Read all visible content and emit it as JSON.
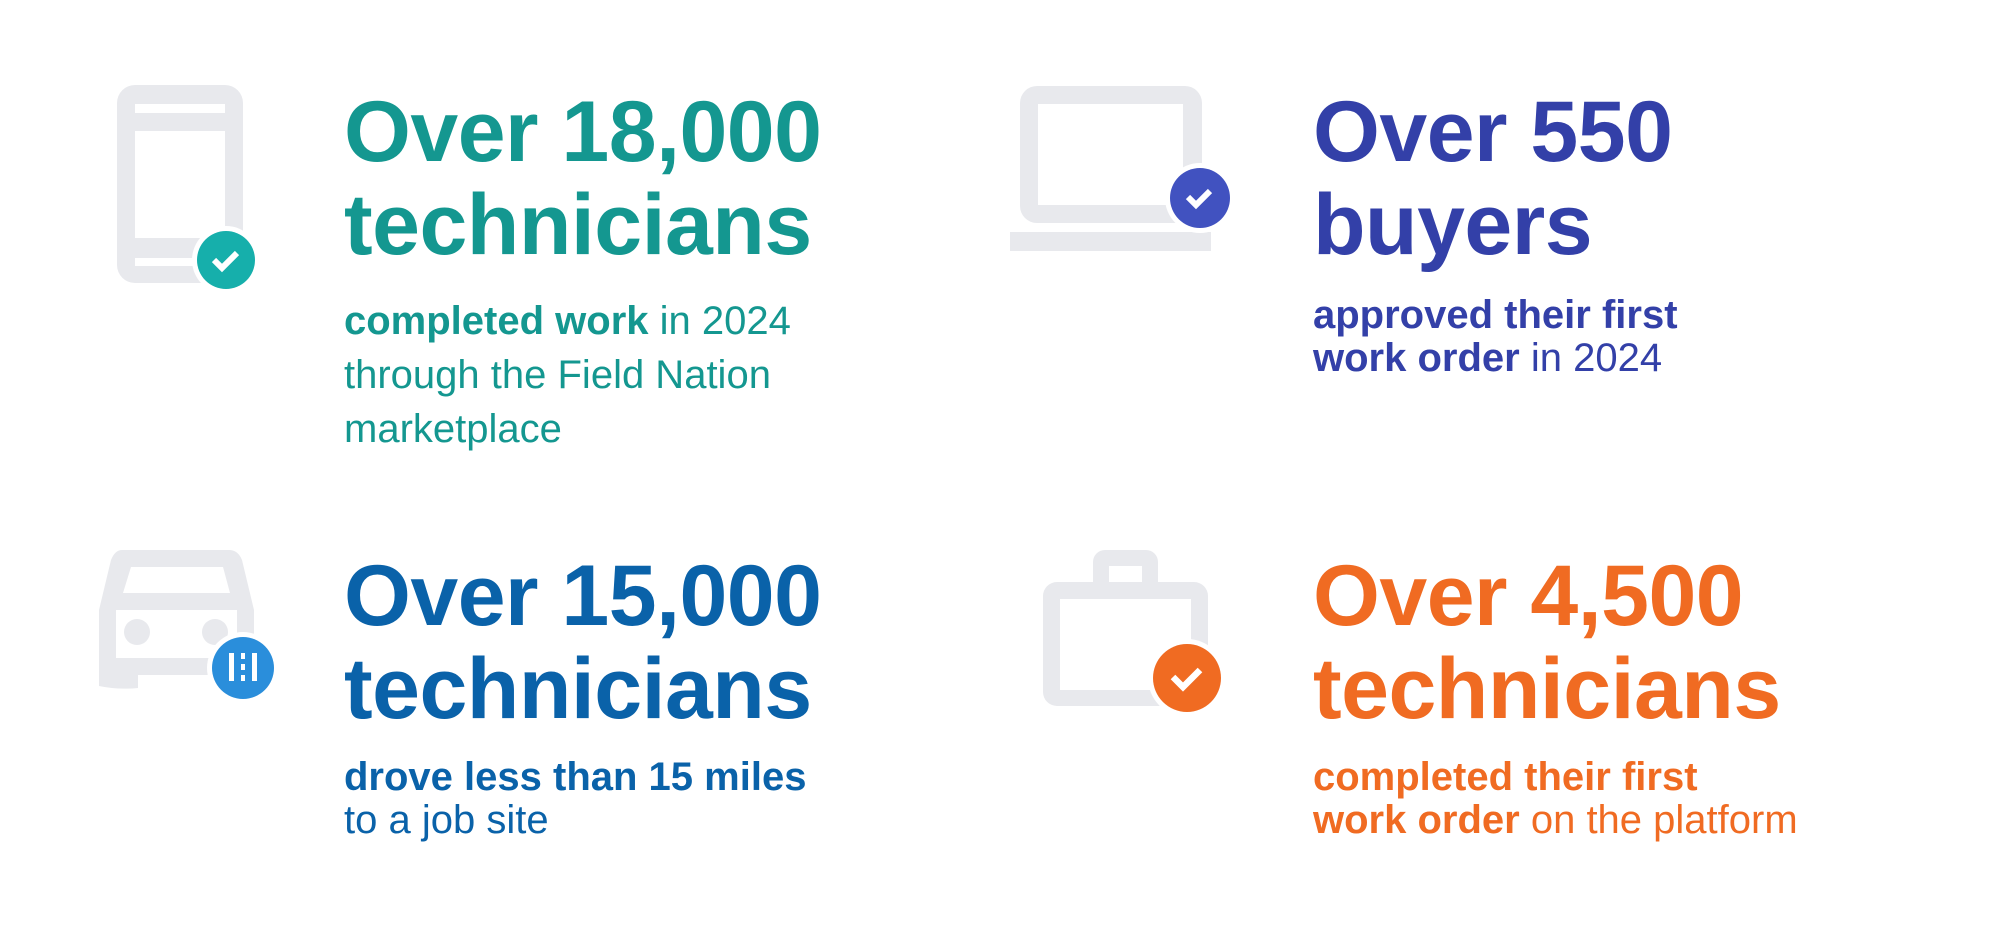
{
  "colors": {
    "icon_gray": "#E8E9ED",
    "teal": "#149790",
    "teal_badge": "#16AFAB",
    "indigo": "#3340A8",
    "indigo_badge": "#4152C0",
    "blue": "#0A62A9",
    "blue_badge": "#2A8EDB",
    "orange": "#F06B22",
    "orange_badge": "#F06B22"
  },
  "stats": [
    {
      "icon": "phone-with-check-icon",
      "headline": [
        "Over 18,000",
        "technicians"
      ],
      "sub_lines": [
        {
          "bold": "completed work",
          "normal": " in 2024"
        },
        {
          "bold": "",
          "normal": "through the Field Nation"
        },
        {
          "bold": "",
          "normal": "marketplace"
        }
      ]
    },
    {
      "icon": "laptop-with-check-icon",
      "headline": [
        "Over 550",
        "buyers"
      ],
      "sub_lines": [
        {
          "bold": "approved their first",
          "normal": ""
        },
        {
          "bold": "work order",
          "normal": " in 2024"
        }
      ]
    },
    {
      "icon": "car-with-road-icon",
      "headline": [
        "Over 15,000",
        "technicians"
      ],
      "sub_lines": [
        {
          "bold": "drove less than 15 miles",
          "normal": ""
        },
        {
          "bold": "",
          "normal": "to a job site"
        }
      ]
    },
    {
      "icon": "briefcase-with-check-icon",
      "headline": [
        "Over 4,500",
        "technicians"
      ],
      "sub_lines": [
        {
          "bold": "completed their first",
          "normal": ""
        },
        {
          "bold": "work order",
          "normal": " on the platform"
        }
      ]
    }
  ]
}
